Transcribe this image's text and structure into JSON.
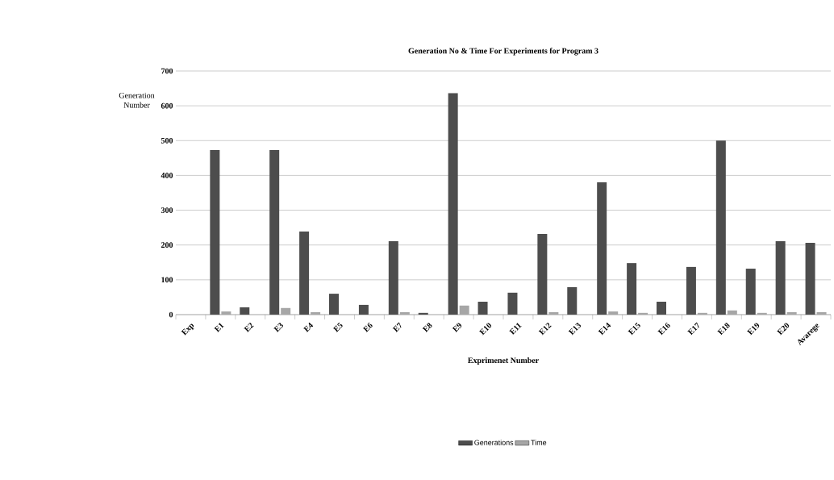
{
  "chart_data": {
    "type": "bar",
    "title": "Generation No & Time For Experiments for Program 3",
    "xlabel": "Exprimenet Number",
    "ylabel": "Generation Number",
    "categories": [
      "Exp",
      "E1",
      "E2",
      "E3",
      "E4",
      "E5",
      "E6",
      "E7",
      "E8",
      "E9",
      "E10",
      "E11",
      "E12",
      "E13",
      "E14",
      "E15",
      "E16",
      "E17",
      "E18",
      "E19",
      "E20",
      "Avarege"
    ],
    "series": [
      {
        "name": "Generations",
        "color": "#4d4d4d",
        "values": [
          null,
          473,
          21,
          473,
          239,
          60,
          28,
          211,
          5,
          636,
          37,
          63,
          232,
          79,
          380,
          148,
          37,
          137,
          500,
          132,
          211,
          206
        ]
      },
      {
        "name": "Time",
        "color": "#a6a6a6",
        "values": [
          null,
          9,
          null,
          19,
          7,
          null,
          null,
          7,
          null,
          26,
          null,
          null,
          7,
          null,
          9,
          5,
          null,
          5,
          12,
          5,
          7,
          7
        ]
      }
    ],
    "ylim": [
      0,
      700
    ],
    "yticks": [
      0,
      100,
      200,
      300,
      400,
      500,
      600,
      700
    ],
    "grid": "y",
    "legend": "bottom"
  }
}
